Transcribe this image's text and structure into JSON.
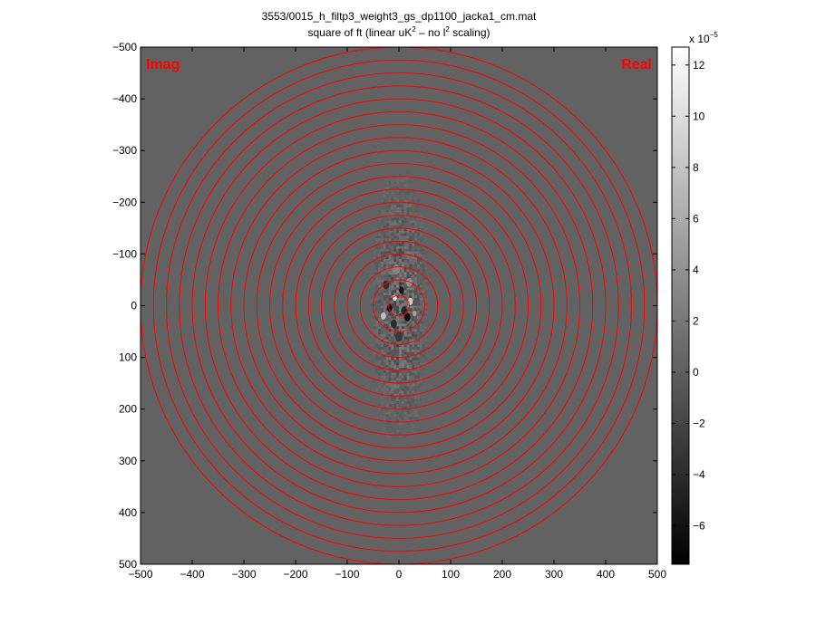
{
  "chart_data": {
    "type": "heatmap",
    "title": "3553/0015_h_filtp3_weight3_gs_dp1100_jacka1_cm.mat",
    "subtitle": {
      "prefix": "square of ft (linear uK",
      "sup1": "2",
      "middle": " – no l",
      "sup2": "2",
      "suffix": " scaling)"
    },
    "xlabel": "",
    "ylabel": "",
    "xlim": [
      -500,
      500
    ],
    "ylim": [
      500,
      -500
    ],
    "x_ticks": [
      -500,
      -400,
      -300,
      -200,
      -100,
      0,
      100,
      200,
      300,
      400,
      500
    ],
    "x_tick_labels": [
      "−500",
      "−400",
      "−300",
      "−200",
      "−100",
      "0",
      "100",
      "200",
      "300",
      "400",
      "500"
    ],
    "y_ticks": [
      -500,
      -400,
      -300,
      -200,
      -100,
      0,
      100,
      200,
      300,
      400,
      500
    ],
    "y_tick_labels": [
      "−500",
      "−400",
      "−300",
      "−200",
      "−100",
      "0",
      "100",
      "200",
      "300",
      "400",
      "500"
    ],
    "annotations": {
      "left": "Imag",
      "right": "Real"
    },
    "rings": {
      "radii": [
        20,
        50,
        75,
        100,
        125,
        150,
        175,
        200,
        225,
        250,
        275,
        300,
        325,
        350,
        375,
        400,
        425,
        450,
        475,
        500
      ],
      "color": "#ff0000"
    },
    "colorbar": {
      "min": -7.5,
      "max": 12.7,
      "ticks": [
        -6,
        -4,
        -2,
        0,
        2,
        4,
        6,
        8,
        10,
        12
      ],
      "tick_labels": [
        "−6",
        "−4",
        "−2",
        "0",
        "2",
        "4",
        "6",
        "8",
        "10",
        "12"
      ],
      "exponent_base": "x 10",
      "exponent": "−5",
      "colormap": "gray"
    },
    "background_value": 0.3,
    "blobs": [
      {
        "x": -18,
        "y": 5,
        "v": -7.0,
        "s": 5
      },
      {
        "x": 16,
        "y": 22,
        "v": -6.5,
        "s": 6
      },
      {
        "x": 5,
        "y": -30,
        "v": -5.5,
        "s": 5
      },
      {
        "x": -8,
        "y": -15,
        "v": 11.0,
        "s": 4
      },
      {
        "x": 22,
        "y": -8,
        "v": 9.0,
        "s": 5
      },
      {
        "x": -30,
        "y": 20,
        "v": 7.5,
        "s": 5
      },
      {
        "x": 10,
        "y": 10,
        "v": -4.5,
        "s": 6
      },
      {
        "x": -10,
        "y": 35,
        "v": -4.0,
        "s": 6
      },
      {
        "x": 30,
        "y": 15,
        "v": 5.0,
        "s": 4
      },
      {
        "x": -25,
        "y": -40,
        "v": -3.5,
        "s": 6
      },
      {
        "x": 20,
        "y": -45,
        "v": 4.0,
        "s": 6
      },
      {
        "x": 0,
        "y": 60,
        "v": -3.0,
        "s": 7
      },
      {
        "x": -5,
        "y": -70,
        "v": 3.0,
        "s": 7
      }
    ],
    "noise": {
      "x_half_width": 70,
      "y_half_height": 260,
      "amplitude": 3.0,
      "seed": 7
    }
  }
}
